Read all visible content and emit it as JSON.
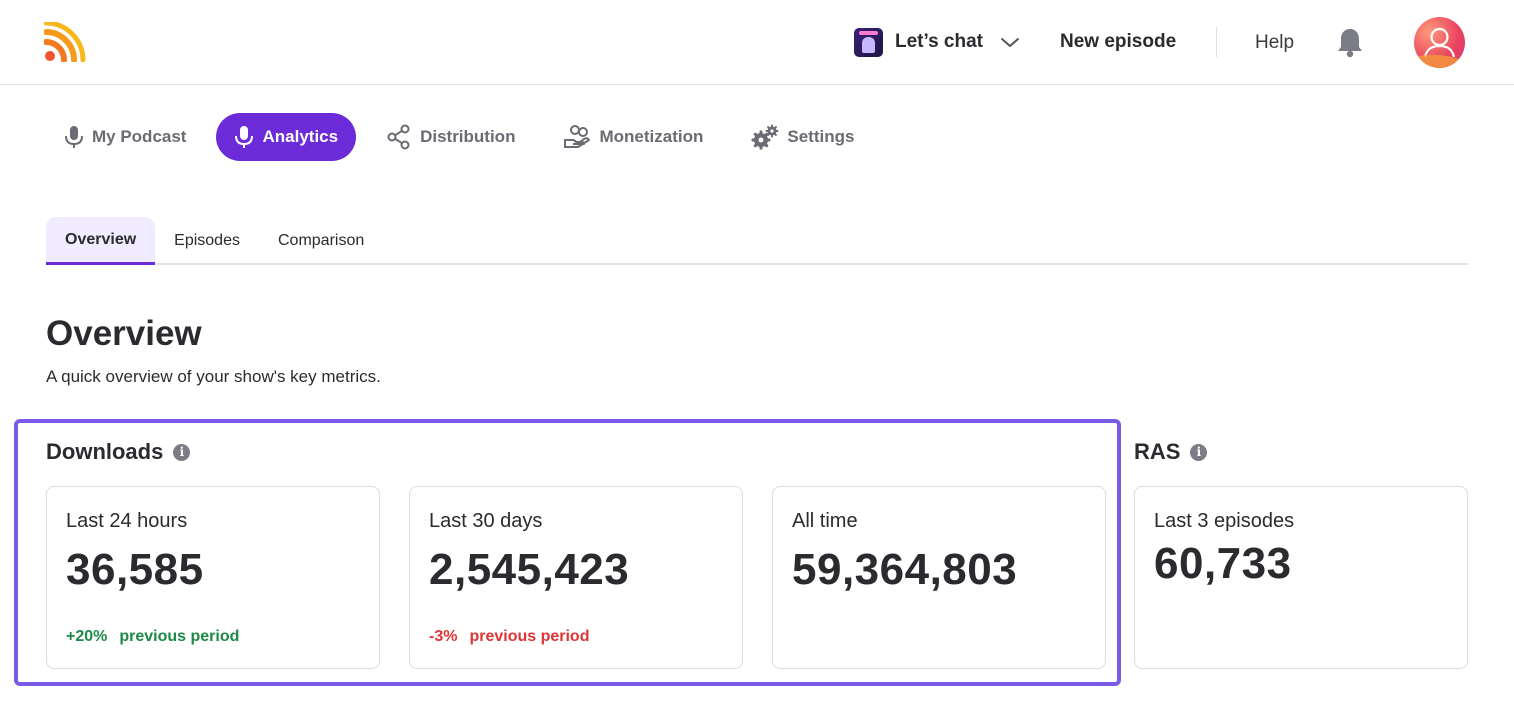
{
  "header": {
    "podcast_name": "Let’s chat",
    "new_episode": "New episode",
    "help": "Help"
  },
  "nav": {
    "items": [
      {
        "label": "My Podcast",
        "icon": "microphone-icon"
      },
      {
        "label": "Analytics",
        "icon": "microphone-icon",
        "active": true
      },
      {
        "label": "Distribution",
        "icon": "share-icon"
      },
      {
        "label": "Monetization",
        "icon": "hand-coins-icon"
      },
      {
        "label": "Settings",
        "icon": "gears-icon"
      }
    ]
  },
  "tabs": [
    {
      "label": "Overview",
      "active": true
    },
    {
      "label": "Episodes"
    },
    {
      "label": "Comparison"
    }
  ],
  "page": {
    "title": "Overview",
    "subtitle": "A quick overview of your show's key metrics."
  },
  "downloads": {
    "label": "Downloads",
    "cards": [
      {
        "label": "Last 24 hours",
        "value": "36,585",
        "delta": "+20%",
        "delta_text": "previous period"
      },
      {
        "label": "Last 30 days",
        "value": "2,545,423",
        "delta": "-3%",
        "delta_text": "previous period"
      },
      {
        "label": "All time",
        "value": "59,364,803"
      }
    ]
  },
  "ras": {
    "label": "RAS",
    "card": {
      "label": "Last 3 episodes",
      "value": "60,733"
    }
  },
  "colors": {
    "accent": "#6c2bd9",
    "highlight_border": "#7a5ae6",
    "positive": "#1d8a47",
    "negative": "#e03434"
  }
}
